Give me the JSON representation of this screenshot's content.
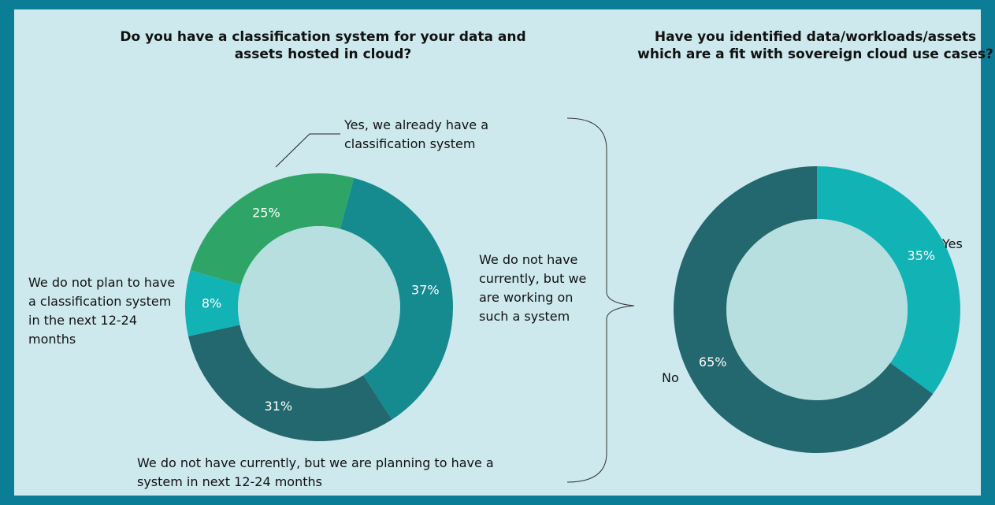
{
  "chart_data": [
    {
      "type": "pie",
      "title": "Do you have a classification system for your data and assets hosted in cloud?",
      "categories": [
        "Yes, we already have a classification system",
        "We do not have currently, but we are working on such a system",
        "We do not have currently, but we are planning to have a system in next 12-24 months",
        "We do not plan to have a classification system in the next 12-24 months"
      ],
      "values": [
        25,
        37,
        31,
        8
      ],
      "value_labels": [
        "25%",
        "37%",
        "31%",
        "8%"
      ],
      "colors": [
        "#2ea567",
        "#168b8f",
        "#23676f",
        "#12b3b5"
      ]
    },
    {
      "type": "pie",
      "title": "Have you identified data/workloads/assets which are a fit with sovereign cloud use cases?",
      "categories": [
        "Yes",
        "No"
      ],
      "values": [
        35,
        65
      ],
      "value_labels": [
        "35%",
        "65%"
      ],
      "colors": [
        "#12b3b5",
        "#23676f"
      ]
    }
  ]
}
